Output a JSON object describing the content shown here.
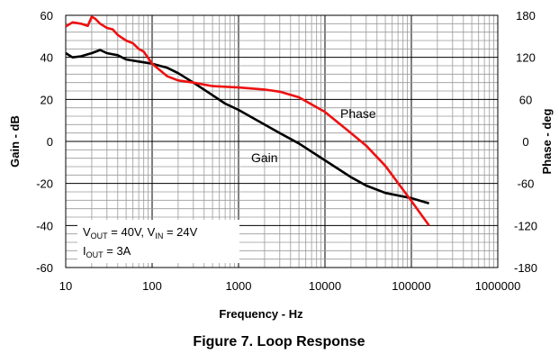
{
  "chart_data": {
    "type": "line",
    "title": "",
    "caption": "Figure 7. Loop Response",
    "xlabel": "Frequency - Hz",
    "ylabel_left": "Gain - dB",
    "ylabel_right": "Phase - deg",
    "x_scale": "log",
    "xlim": [
      10,
      1000000
    ],
    "ylim_left": [
      -60,
      60
    ],
    "ylim_right": [
      -180,
      180
    ],
    "x_ticks": [
      "10",
      "100",
      "1000",
      "10000",
      "100000",
      "1000000"
    ],
    "y_ticks_left": [
      "60",
      "40",
      "20",
      "0",
      "-20",
      "-40",
      "-60"
    ],
    "y_ticks_right": [
      "180",
      "120",
      "60",
      "0",
      "-60",
      "-120",
      "-180"
    ],
    "grid": true,
    "legend": "none",
    "annotation": {
      "line1_a": "V",
      "line1_a_sub": "OUT",
      "line1_b": " = 40V, V",
      "line1_b_sub": "IN",
      "line1_c": " = 24V",
      "line2_a": "I",
      "line2_a_sub": "OUT",
      "line2_b": " = 3A"
    },
    "colors": {
      "gain": "#000000",
      "phase": "#ee1111",
      "grid": "#9a9a9a"
    },
    "series": [
      {
        "name": "Gain",
        "axis": "left",
        "x": [
          10,
          12,
          15,
          20,
          25,
          30,
          40,
          50,
          70,
          100,
          150,
          200,
          300,
          500,
          700,
          1000,
          2000,
          3000,
          5000,
          10000,
          20000,
          30000,
          50000,
          100000,
          160000
        ],
        "y": [
          42,
          40,
          40.5,
          42,
          43.5,
          42,
          41,
          39,
          38,
          37,
          35,
          32.5,
          28,
          22,
          18,
          15,
          8,
          4,
          -1,
          -9,
          -17,
          -21,
          -24.5,
          -27,
          -29.5
        ]
      },
      {
        "name": "Phase",
        "axis": "right",
        "x": [
          10,
          12,
          15,
          18,
          20,
          22,
          25,
          30,
          35,
          40,
          50,
          60,
          70,
          80,
          100,
          150,
          200,
          300,
          500,
          1000,
          2000,
          3000,
          5000,
          10000,
          20000,
          30000,
          50000,
          100000,
          160000
        ],
        "y": [
          164,
          170,
          168,
          165,
          178,
          175,
          168,
          162,
          160,
          152,
          144,
          140,
          132,
          128,
          111,
          93,
          87,
          84,
          79,
          77,
          74,
          71,
          63,
          42,
          12,
          -6,
          -35,
          -85,
          -120
        ]
      }
    ]
  }
}
